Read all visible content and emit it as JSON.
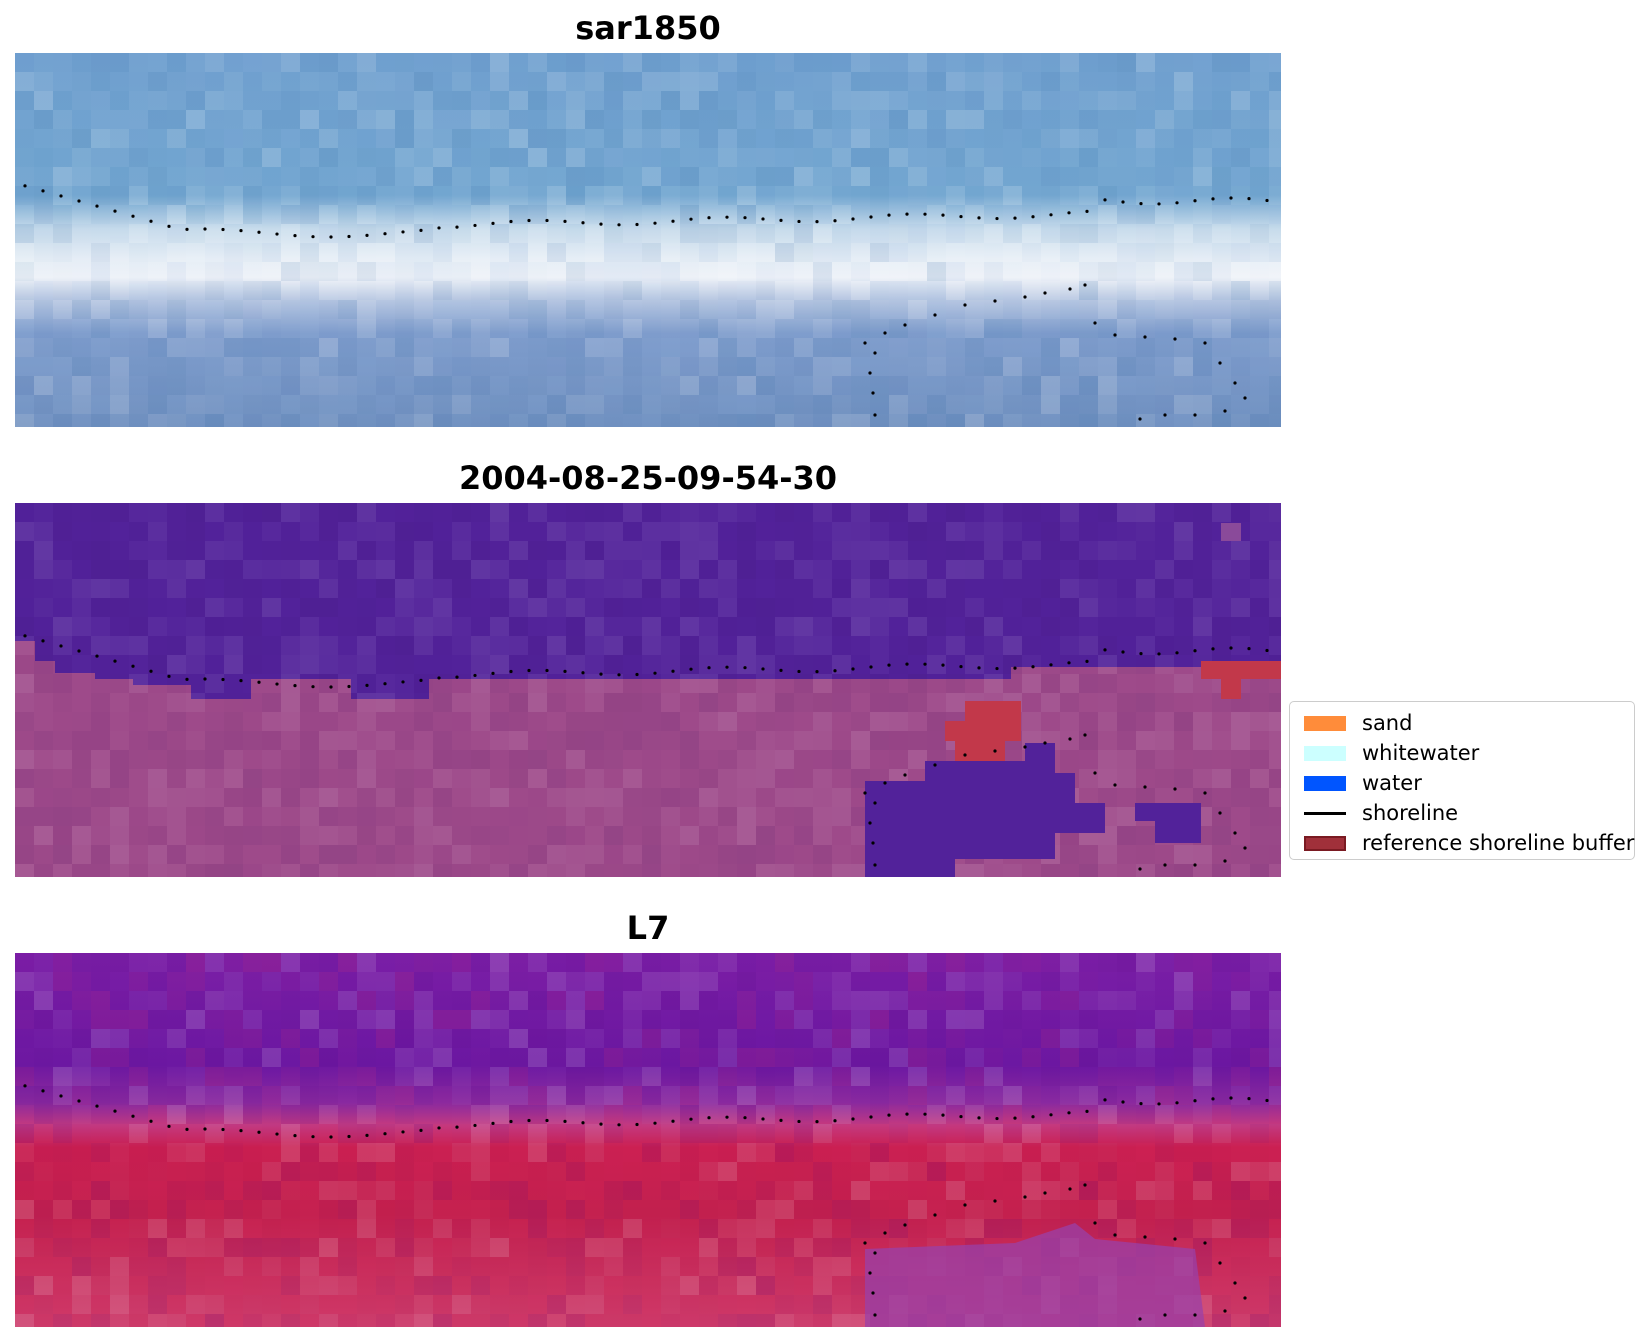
{
  "panels": [
    {
      "title": "sar1850",
      "kind": "rgb"
    },
    {
      "title": "2004-08-25-09-54-30",
      "kind": "classified"
    },
    {
      "title": "L7",
      "kind": "falsecolor"
    }
  ],
  "legend": {
    "items": [
      {
        "label": "sand",
        "color": "#ff8c3a",
        "type": "patch"
      },
      {
        "label": "whitewater",
        "color": "#ccffff",
        "type": "patch"
      },
      {
        "label": "water",
        "color": "#0055ff",
        "type": "patch"
      },
      {
        "label": "shoreline",
        "color": "#000000",
        "type": "line"
      },
      {
        "label": "reference shoreline buffer",
        "color": "#a52a2a",
        "type": "patch-edge"
      }
    ]
  },
  "colors": {
    "classified_water": "#52229a",
    "classified_land": "#9e4a8a",
    "buffer": "#c2384a",
    "rgb_sea": "#6a9ccc",
    "rgb_surf": "#e8eef5",
    "fc_sea": "#6a1a9e",
    "fc_land": "#c21e4a"
  }
}
